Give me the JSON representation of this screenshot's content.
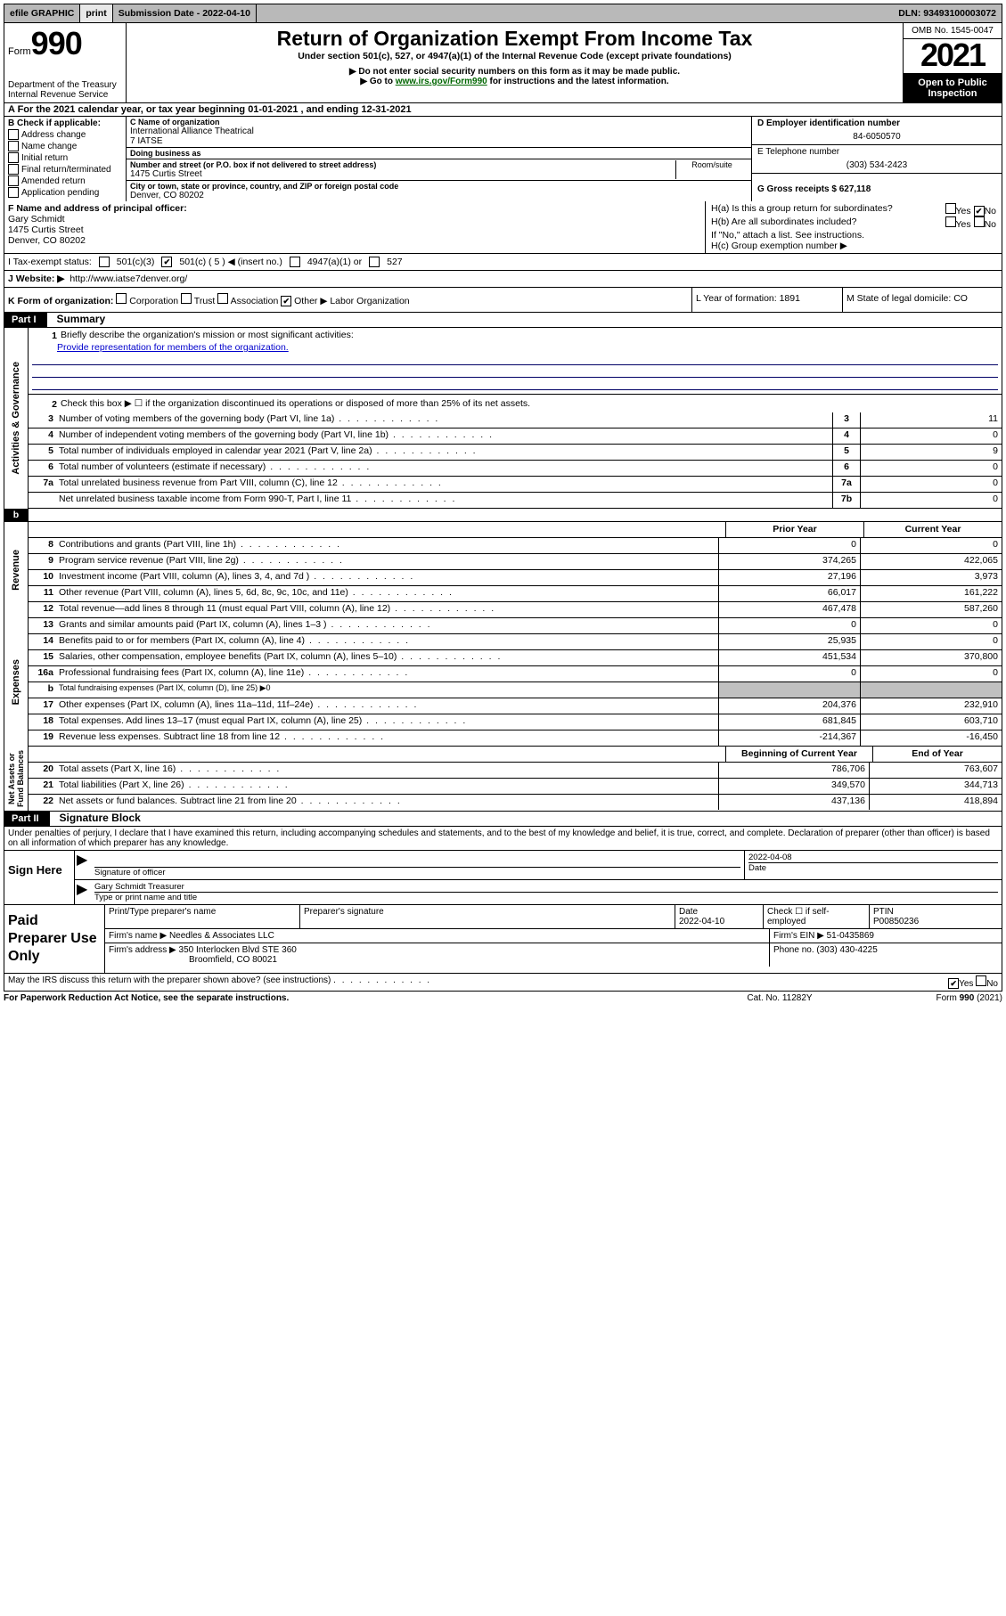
{
  "topbar": {
    "efile": "efile GRAPHIC",
    "print": "print",
    "subdate_label": "Submission Date - ",
    "subdate": "2022-04-10",
    "dln": "DLN: 93493100003072"
  },
  "header": {
    "form_small": "Form",
    "form_big": "990",
    "title": "Return of Organization Exempt From Income Tax",
    "subtitle": "Under section 501(c), 527, or 4947(a)(1) of the Internal Revenue Code (except private foundations)",
    "instr1": "▶ Do not enter social security numbers on this form as it may be made public.",
    "instr2_pre": "▶ Go to ",
    "instr2_link": "www.irs.gov/Form990",
    "instr2_post": " for instructions and the latest information.",
    "dept": "Department of the Treasury\nInternal Revenue Service",
    "omb": "OMB No. 1545-0047",
    "year": "2021",
    "open": "Open to Public Inspection"
  },
  "row_a": "A For the 2021 calendar year, or tax year beginning 01-01-2021    , and ending 12-31-2021",
  "col_b": {
    "label": "B Check if applicable:",
    "items": [
      "Address change",
      "Name change",
      "Initial return",
      "Final return/terminated",
      "Amended return",
      "Application pending"
    ]
  },
  "col_c": {
    "name_label": "C Name of organization",
    "name": "International Alliance Theatrical\n7 IATSE",
    "dba_label": "Doing business as",
    "dba": "",
    "street_label": "Number and street (or P.O. box if not delivered to street address)",
    "street": "1475 Curtis Street",
    "room_label": "Room/suite",
    "city_label": "City or town, state or province, country, and ZIP or foreign postal code",
    "city": "Denver, CO  80202"
  },
  "col_de": {
    "d_label": "D Employer identification number",
    "d_val": "84-6050570",
    "e_label": "E Telephone number",
    "e_val": "(303) 534-2423",
    "g_label": "G Gross receipts $ 627,118"
  },
  "f": {
    "label": "F  Name and address of principal officer:",
    "name": "Gary Schmidt",
    "street": "1475 Curtis Street",
    "city": "Denver, CO  80202"
  },
  "h": {
    "ha": "H(a)  Is this a group return for subordinates?",
    "hb": "H(b)  Are all subordinates included?",
    "hb_note": "If \"No,\" attach a list. See instructions.",
    "hc": "H(c)  Group exemption number ▶"
  },
  "i": {
    "label": "I    Tax-exempt status:",
    "c3": "501(c)(3)",
    "c5": "501(c) ( 5 ) ◀ (insert no.)",
    "a1": "4947(a)(1) or",
    "s527": "527"
  },
  "j": {
    "label": "J    Website: ▶",
    "url": "http://www.iatse7denver.org/"
  },
  "k": {
    "label": "K Form of organization:",
    "corp": "Corporation",
    "trust": "Trust",
    "assoc": "Association",
    "other": "Other ▶",
    "other_val": "Labor Organization"
  },
  "lm": {
    "l": "L Year of formation: 1891",
    "m": "M State of legal domicile: CO"
  },
  "part1": {
    "hdr": "Part I",
    "title": "Summary",
    "line1_label": "Briefly describe the organization's mission or most significant activities:",
    "line1_val": "Provide representation for members of the organization.",
    "line2": "Check this box ▶ ☐  if the organization discontinued its operations or disposed of more than 25% of its net assets.",
    "activities_label": "Activities & Governance",
    "revenue_label": "Revenue",
    "expenses_label": "Expenses",
    "netassets_label": "Net Assets or\nFund Balances",
    "prior_hdr": "Prior Year",
    "current_hdr": "Current Year",
    "boy_hdr": "Beginning of Current Year",
    "eoy_hdr": "End of Year",
    "lines_single": [
      {
        "n": "3",
        "t": "Number of voting members of the governing body (Part VI, line 1a)",
        "c": "3",
        "v": "11"
      },
      {
        "n": "4",
        "t": "Number of independent voting members of the governing body (Part VI, line 1b)",
        "c": "4",
        "v": "0"
      },
      {
        "n": "5",
        "t": "Total number of individuals employed in calendar year 2021 (Part V, line 2a)",
        "c": "5",
        "v": "9"
      },
      {
        "n": "6",
        "t": "Total number of volunteers (estimate if necessary)",
        "c": "6",
        "v": "0"
      },
      {
        "n": "7a",
        "t": "Total unrelated business revenue from Part VIII, column (C), line 12",
        "c": "7a",
        "v": "0"
      },
      {
        "n": "",
        "t": "Net unrelated business taxable income from Form 990-T, Part I, line 11",
        "c": "7b",
        "v": "0"
      }
    ],
    "lines_rev": [
      {
        "n": "8",
        "t": "Contributions and grants (Part VIII, line 1h)",
        "p": "0",
        "c": "0"
      },
      {
        "n": "9",
        "t": "Program service revenue (Part VIII, line 2g)",
        "p": "374,265",
        "c": "422,065"
      },
      {
        "n": "10",
        "t": "Investment income (Part VIII, column (A), lines 3, 4, and 7d )",
        "p": "27,196",
        "c": "3,973"
      },
      {
        "n": "11",
        "t": "Other revenue (Part VIII, column (A), lines 5, 6d, 8c, 9c, 10c, and 11e)",
        "p": "66,017",
        "c": "161,222"
      },
      {
        "n": "12",
        "t": "Total revenue—add lines 8 through 11 (must equal Part VIII, column (A), line 12)",
        "p": "467,478",
        "c": "587,260"
      }
    ],
    "lines_exp": [
      {
        "n": "13",
        "t": "Grants and similar amounts paid (Part IX, column (A), lines 1–3 )",
        "p": "0",
        "c": "0"
      },
      {
        "n": "14",
        "t": "Benefits paid to or for members (Part IX, column (A), line 4)",
        "p": "25,935",
        "c": "0"
      },
      {
        "n": "15",
        "t": "Salaries, other compensation, employee benefits (Part IX, column (A), lines 5–10)",
        "p": "451,534",
        "c": "370,800"
      },
      {
        "n": "16a",
        "t": "Professional fundraising fees (Part IX, column (A), line 11e)",
        "p": "0",
        "c": "0"
      },
      {
        "n": "b",
        "t": "Total fundraising expenses (Part IX, column (D), line 25) ▶0",
        "p": "",
        "c": "",
        "grey": true,
        "small": true
      },
      {
        "n": "17",
        "t": "Other expenses (Part IX, column (A), lines 11a–11d, 11f–24e)",
        "p": "204,376",
        "c": "232,910"
      },
      {
        "n": "18",
        "t": "Total expenses. Add lines 13–17 (must equal Part IX, column (A), line 25)",
        "p": "681,845",
        "c": "603,710"
      },
      {
        "n": "19",
        "t": "Revenue less expenses. Subtract line 18 from line 12",
        "p": "-214,367",
        "c": "-16,450"
      }
    ],
    "lines_net": [
      {
        "n": "20",
        "t": "Total assets (Part X, line 16)",
        "p": "786,706",
        "c": "763,607"
      },
      {
        "n": "21",
        "t": "Total liabilities (Part X, line 26)",
        "p": "349,570",
        "c": "344,713"
      },
      {
        "n": "22",
        "t": "Net assets or fund balances. Subtract line 21 from line 20",
        "p": "437,136",
        "c": "418,894"
      }
    ]
  },
  "part2": {
    "hdr": "Part II",
    "title": "Signature Block",
    "decl": "Under penalties of perjury, I declare that I have examined this return, including accompanying schedules and statements, and to the best of my knowledge and belief, it is true, correct, and complete. Declaration of preparer (other than officer) is based on all information of which preparer has any knowledge.",
    "sign_here": "Sign Here",
    "sig_officer": "Signature of officer",
    "sig_date_label": "Date",
    "sig_date": "2022-04-08",
    "sig_name_label": "Type or print name and title",
    "sig_name": "Gary Schmidt Treasurer"
  },
  "paid": {
    "label": "Paid Preparer Use Only",
    "print_type": "Print/Type preparer's name",
    "prep_sig": "Preparer's signature",
    "date_label": "Date",
    "date": "2022-04-10",
    "check_label": "Check ☐ if self-employed",
    "ptin_label": "PTIN",
    "ptin": "P00850236",
    "firm_name_label": "Firm's name      ▶",
    "firm_name": "Needles & Associates LLC",
    "firm_ein_label": "Firm's EIN ▶",
    "firm_ein": "51-0435869",
    "firm_addr_label": "Firm's address ▶",
    "firm_addr1": "350 Interlocken Blvd STE 360",
    "firm_addr2": "Broomfield, CO  80021",
    "phone_label": "Phone no.",
    "phone": "(303) 430-4225"
  },
  "footer": {
    "discuss": "May the IRS discuss this return with the preparer shown above? (see instructions)",
    "paperwork": "For Paperwork Reduction Act Notice, see the separate instructions.",
    "cat": "Cat. No. 11282Y",
    "form": "Form 990 (2021)",
    "yes": "Yes",
    "no": "No"
  }
}
